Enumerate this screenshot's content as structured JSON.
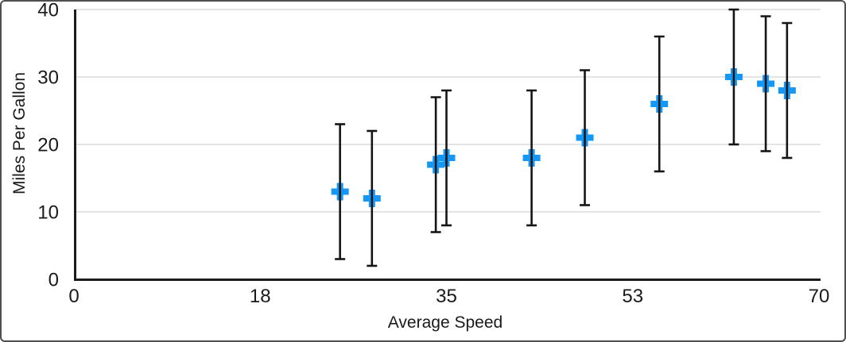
{
  "chart_data": {
    "type": "scatter",
    "title": "",
    "xlabel": "Average Speed",
    "ylabel": "Miles Per Gallon",
    "xlim": [
      0,
      70
    ],
    "ylim": [
      0,
      40
    ],
    "x_ticks": [
      {
        "value": 0,
        "label": "0"
      },
      {
        "value": 17.5,
        "label": "18"
      },
      {
        "value": 35,
        "label": "35"
      },
      {
        "value": 52.5,
        "label": "53"
      },
      {
        "value": 70,
        "label": "70"
      }
    ],
    "y_ticks": [
      {
        "value": 0,
        "label": "0"
      },
      {
        "value": 10,
        "label": "10"
      },
      {
        "value": 20,
        "label": "20"
      },
      {
        "value": 30,
        "label": "30"
      },
      {
        "value": 40,
        "label": "40"
      }
    ],
    "grid": "horizontal-only",
    "legend": "none",
    "series": [
      {
        "name": "Miles Per Gallon",
        "marker": "plus",
        "points": [
          {
            "x": 25,
            "y": 13,
            "error_plus": 10,
            "error_minus": 10
          },
          {
            "x": 28,
            "y": 12,
            "error_plus": 10,
            "error_minus": 10
          },
          {
            "x": 34,
            "y": 17,
            "error_plus": 10,
            "error_minus": 10
          },
          {
            "x": 35,
            "y": 18,
            "error_plus": 10,
            "error_minus": 10
          },
          {
            "x": 43,
            "y": 18,
            "error_plus": 10,
            "error_minus": 10
          },
          {
            "x": 48,
            "y": 21,
            "error_plus": 10,
            "error_minus": 10
          },
          {
            "x": 55,
            "y": 26,
            "error_plus": 10,
            "error_minus": 10
          },
          {
            "x": 62,
            "y": 30,
            "error_plus": 10,
            "error_minus": 10
          },
          {
            "x": 65,
            "y": 29,
            "error_plus": 10,
            "error_minus": 10
          },
          {
            "x": 67,
            "y": 28,
            "error_plus": 10,
            "error_minus": 10
          }
        ]
      }
    ],
    "colors": {
      "marker": "#1598F5",
      "error_bar": "#151515",
      "axis": "#1c1c1c",
      "gridline": "#dcdcdc",
      "text": "#1a1a1a",
      "background": "#ffffff",
      "frame_border": "#4f4f4f"
    }
  }
}
